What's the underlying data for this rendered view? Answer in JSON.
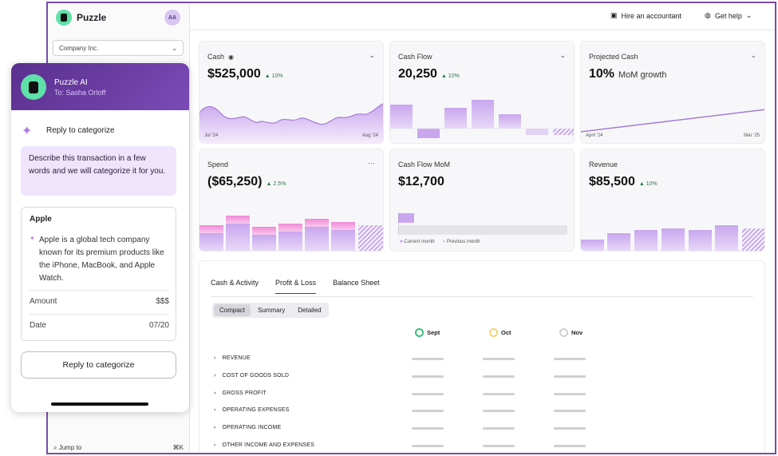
{
  "app": {
    "name": "Puzzle",
    "avatar_initials": "AA"
  },
  "sidebar": {
    "company": "Company Inc.",
    "jump_label": "Jump to",
    "jump_shortcut": "⌘K"
  },
  "topbar": {
    "hire": "Hire an accountant",
    "help": "Get help"
  },
  "cards": {
    "cash": {
      "title": "Cash",
      "value": "$525,000",
      "delta": "▲ 10%",
      "axis_start": "Jul '24",
      "axis_end": "Aug '24"
    },
    "cashflow": {
      "title": "Cash Flow",
      "value": "20,250",
      "delta": "▲ 10%"
    },
    "projected": {
      "title": "Projected Cash",
      "value": "10%",
      "sub": "MoM growth",
      "axis_start": "April '24",
      "axis_end": "Mar '25"
    },
    "spend": {
      "title": "Spend",
      "value": "($65,250)",
      "delta": "▲ 2.5%"
    },
    "cashflow_mom": {
      "title": "Cash Flow MoM",
      "value": "$12,700",
      "legend_current": "Current month",
      "legend_previous": "Previous month"
    },
    "revenue": {
      "title": "Revenue",
      "value": "$85,500",
      "delta": "▲ 10%"
    }
  },
  "report": {
    "tabs": [
      "Cash & Activity",
      "Profit & Loss",
      "Balance Sheet"
    ],
    "active_tab": "Profit & Loss",
    "views": [
      "Compact",
      "Summary",
      "Detailed"
    ],
    "months": [
      {
        "label": "Sept",
        "color": "#3dbd7a"
      },
      {
        "label": "Oct",
        "color": "#f2d57a"
      },
      {
        "label": "Nov",
        "color": "#cfcfd4"
      }
    ],
    "rows": [
      "REVENUE",
      "COST OF GOODS SOLD",
      "GROSS PROFIT",
      "OPERATING EXPENSES",
      "OPERATING INCOME",
      "OTHER INCOME AND EXPENSES"
    ]
  },
  "popup": {
    "ai_name": "Puzzle AI",
    "to": "To: Sasha Orloff",
    "reply_title": "Reply to categorize",
    "prompt": "Describe this transaction in a few words and we will categorize it for you.",
    "merchant": "Apple",
    "description": "Apple is a global tech company known for its premium products like the iPhone, MacBook, and Apple Watch.",
    "amount_label": "Amount",
    "amount_value": "$$$",
    "date_label": "Date",
    "date_value": "07/20",
    "button": "Reply to categorize"
  },
  "colors": {
    "accent": "#7a4bb0",
    "bar": "#c9a6ee",
    "bar_pink": "#f08ad8",
    "positive": "#2c7a4b"
  }
}
